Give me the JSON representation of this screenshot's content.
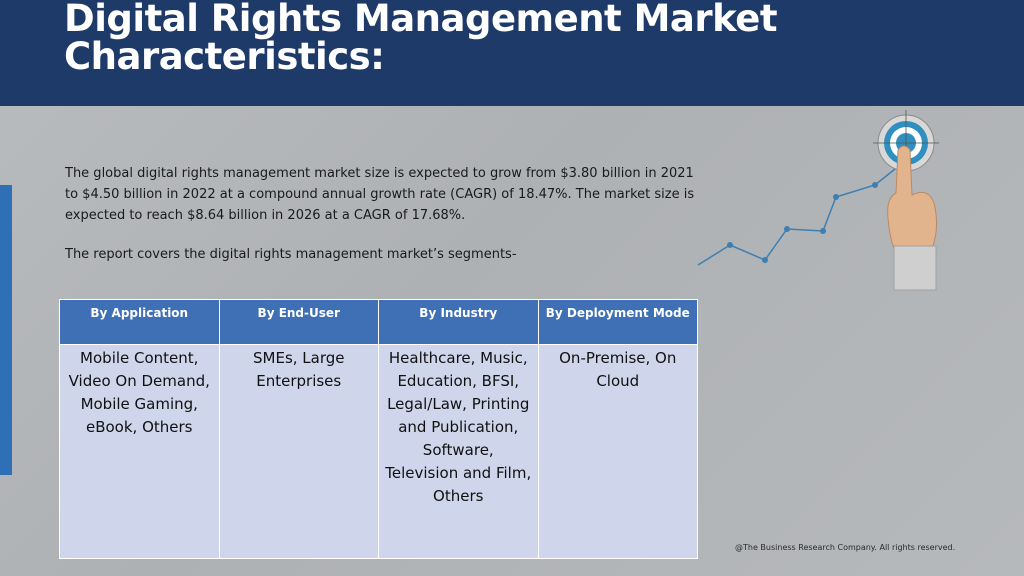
{
  "title": {
    "line1": "Digital Rights Management Market",
    "line2": "Characteristics:"
  },
  "intro": {
    "paragraph": "The global digital rights management market size is expected to grow from $3.80 billion in 2021 to $4.50 billion in 2022 at a compound annual growth rate (CAGR) of 18.47%. The market size is expected to reach $8.64 billion in 2026 at a CAGR of 17.68%.",
    "segments_text": "The report covers the digital rights management market’s segments-"
  },
  "table": {
    "headers": [
      "By Application",
      "By End-User",
      "By Industry",
      "By Deployment Mode"
    ],
    "cells": [
      "Mobile Content, Video On Demand, Mobile Gaming, eBook, Others",
      "SMEs, Large Enterprises",
      "Healthcare, Music, Education, BFSI, Legal/Law, Printing and Publication, Software, Television and Film, Others",
      "On-Premise, On Cloud"
    ]
  },
  "footer": "@The Business Research Company. All rights reserved.",
  "colors": {
    "title_bar": "#1e3a68",
    "accent": "#2e6fb5",
    "table_header": "#3f6fb4",
    "table_cell": "#cfd5ea"
  },
  "icons": [
    "growth-chart-icon",
    "target-icon",
    "pointing-hand-icon"
  ]
}
